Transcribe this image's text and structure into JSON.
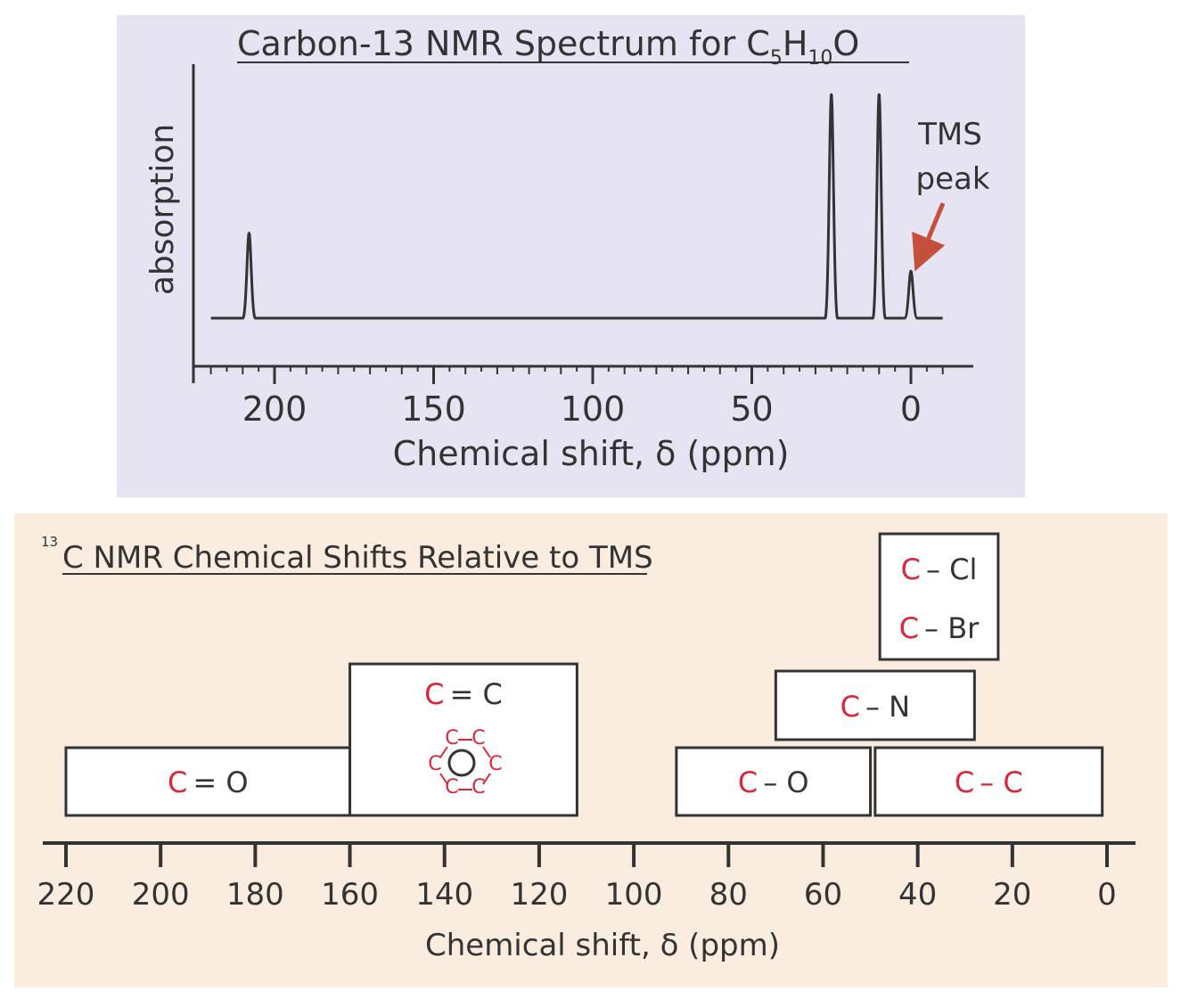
{
  "chart_data": [
    {
      "type": "line",
      "title_main": "Carbon-13 NMR Spectrum for C",
      "formula_sub_c": "5",
      "formula_h": "H",
      "formula_sub_h": "10",
      "formula_o": "O",
      "xlabel": "Chemical shift, δ (ppm)",
      "ylabel": "absorption",
      "xlim": [
        230,
        -10
      ],
      "xticks": [
        "200",
        "150",
        "100",
        "50",
        "0"
      ],
      "xtick_values": [
        200,
        150,
        100,
        50,
        0
      ],
      "peaks": [
        {
          "shift": 208,
          "height": 0.38
        },
        {
          "shift": 25,
          "height": 1.0
        },
        {
          "shift": 10,
          "height": 1.0
        },
        {
          "shift": 0,
          "height": 0.21
        }
      ],
      "baseline_range": [
        220,
        -10
      ],
      "annotation": {
        "line1": "TMS",
        "line2": "peak",
        "points_to_shift": 0
      }
    },
    {
      "type": "table",
      "title_sup": "13",
      "title": "C NMR Chemical Shifts Relative to TMS",
      "xlabel": "Chemical shift, δ (ppm)",
      "xlim": [
        220,
        0
      ],
      "xticks": [
        "220",
        "200",
        "180",
        "160",
        "140",
        "120",
        "100",
        "80",
        "60",
        "40",
        "20",
        "0"
      ],
      "xtick_values": [
        220,
        200,
        180,
        160,
        140,
        120,
        100,
        80,
        60,
        40,
        20,
        0
      ],
      "ranges": [
        {
          "name": "carbonyl",
          "c": "C",
          "rest": "= O",
          "from": 220,
          "to": 160
        },
        {
          "name": "alkene-aromatic",
          "c": "C",
          "rest": "= C",
          "from": 160,
          "to": 112,
          "ring_label": "C"
        },
        {
          "name": "c-o",
          "c": "C",
          "rest": "– O",
          "from": 91,
          "to": 50
        },
        {
          "name": "c-c",
          "c": "C",
          "rest": "– C",
          "from": 49,
          "to": 1
        },
        {
          "name": "c-n",
          "c": "C",
          "rest": "– N",
          "from": 70,
          "to": 28
        },
        {
          "name": "c-halogen",
          "c": "C",
          "rest_cl": "– Cl",
          "rest_br": "– Br",
          "from": 48,
          "to": 23
        }
      ]
    }
  ],
  "colors": {
    "top_bg": "#e6e4f2",
    "bottom_bg": "#fbece0",
    "carbon_red": "#d8283a",
    "arrow": "#c4503c",
    "ink": "#333333"
  }
}
